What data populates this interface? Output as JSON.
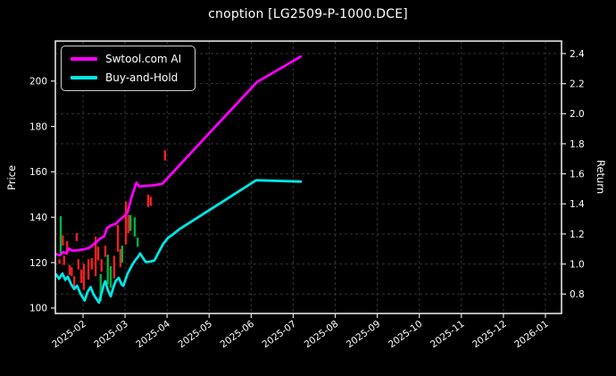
{
  "chart_data": {
    "type": "line + candlestick, dual y-axis time series",
    "title": "cnoption [LG2509-P-1000.DCE]",
    "x_unit": "months after 2025-02 tick (0 = 2025-02, 11 = 2026-01)",
    "x_tick_labels": [
      "2025-02",
      "2025-03",
      "2025-04",
      "2025-05",
      "2025-06",
      "2025-07",
      "2025-08",
      "2025-09",
      "2025-10",
      "2025-11",
      "2025-12",
      "2026-01"
    ],
    "x_domain": [
      -0.658,
      11.383
    ],
    "left_axis": {
      "label": "Price",
      "ticks": [
        100,
        120,
        140,
        160,
        180,
        200
      ],
      "range": [
        97.6,
        217.6
      ]
    },
    "right_axis": {
      "label": "Return",
      "ticks": [
        0.8,
        1.0,
        1.2,
        1.4,
        1.6,
        1.8,
        2.0,
        2.2,
        2.4
      ],
      "range": [
        0.671,
        2.483
      ]
    },
    "grid": {
      "style": "dashed",
      "vertical_at": "month ticks",
      "horizontal_at": "right-axis ticks"
    },
    "legend": {
      "position": "upper left",
      "entries": [
        {
          "label": "Swtool.com AI",
          "color": "#ff00ff"
        },
        {
          "label": "Buy-and-Hold",
          "color": "#00e5e5"
        }
      ]
    },
    "series": [
      {
        "name": "Swtool.com AI",
        "color": "#ff00ff",
        "value_axis": "left (Price)",
        "points": [
          [
            -0.64,
            123.8
          ],
          [
            -0.55,
            123.2
          ],
          [
            -0.47,
            124.6
          ],
          [
            -0.4,
            124.1
          ],
          [
            -0.33,
            126.2
          ],
          [
            -0.26,
            125.3
          ],
          [
            -0.1,
            125.5
          ],
          [
            0.0,
            125.8
          ],
          [
            0.15,
            126.5
          ],
          [
            0.3,
            128.8
          ],
          [
            0.42,
            130.8
          ],
          [
            0.5,
            131.4
          ],
          [
            0.57,
            135.2
          ],
          [
            0.68,
            136.5
          ],
          [
            0.78,
            137.1
          ],
          [
            0.88,
            139.0
          ],
          [
            1.0,
            140.8
          ],
          [
            1.06,
            142.3
          ],
          [
            1.15,
            148.5
          ],
          [
            1.27,
            155.2
          ],
          [
            1.34,
            153.5
          ],
          [
            1.45,
            153.8
          ],
          [
            1.7,
            154.1
          ],
          [
            1.89,
            154.8
          ],
          [
            3.0,
            177.0
          ],
          [
            4.14,
            199.6
          ],
          [
            5.18,
            210.8
          ]
        ]
      },
      {
        "name": "Buy-and-Hold",
        "color": "#00e5e5",
        "value_axis": "left (Price)",
        "points": [
          [
            -0.64,
            114.8
          ],
          [
            -0.57,
            112.9
          ],
          [
            -0.49,
            115.2
          ],
          [
            -0.42,
            112.4
          ],
          [
            -0.36,
            113.8
          ],
          [
            -0.28,
            110.4
          ],
          [
            -0.21,
            108.4
          ],
          [
            -0.14,
            109.8
          ],
          [
            -0.06,
            106.2
          ],
          [
            0.04,
            103.3
          ],
          [
            0.11,
            107.2
          ],
          [
            0.18,
            109.2
          ],
          [
            0.25,
            106.0
          ],
          [
            0.32,
            104.0
          ],
          [
            0.38,
            102.4
          ],
          [
            0.49,
            110.0
          ],
          [
            0.53,
            111.8
          ],
          [
            0.6,
            107.5
          ],
          [
            0.66,
            105.2
          ],
          [
            0.72,
            109.0
          ],
          [
            0.78,
            112.0
          ],
          [
            0.85,
            113.3
          ],
          [
            0.92,
            110.4
          ],
          [
            0.96,
            109.8
          ],
          [
            1.06,
            115.1
          ],
          [
            1.17,
            119.0
          ],
          [
            1.24,
            121.0
          ],
          [
            1.31,
            122.6
          ],
          [
            1.36,
            124.0
          ],
          [
            1.49,
            120.3
          ],
          [
            1.6,
            120.4
          ],
          [
            1.7,
            121.0
          ],
          [
            1.81,
            124.9
          ],
          [
            1.91,
            128.3
          ],
          [
            2.02,
            130.9
          ],
          [
            2.12,
            132.2
          ],
          [
            2.3,
            134.8
          ],
          [
            4.12,
            156.3
          ],
          [
            5.18,
            155.7
          ]
        ]
      }
    ],
    "candles_format": "[x_month, low_price, high_price, direction]",
    "candles": [
      [
        -0.56,
        119.5,
        121.5,
        "down"
      ],
      [
        -0.53,
        124.0,
        140.5,
        "up"
      ],
      [
        -0.48,
        127.5,
        132.0,
        "down"
      ],
      [
        -0.45,
        119.0,
        123.0,
        "down"
      ],
      [
        -0.38,
        123.5,
        129.5,
        "down"
      ],
      [
        -0.32,
        114.5,
        119.0,
        "down"
      ],
      [
        -0.27,
        114.0,
        118.0,
        "down"
      ],
      [
        -0.21,
        109.0,
        114.0,
        "down"
      ],
      [
        -0.15,
        129.5,
        133.0,
        "down"
      ],
      [
        -0.11,
        117.0,
        121.5,
        "down"
      ],
      [
        -0.04,
        111.0,
        117.0,
        "down"
      ],
      [
        0.02,
        108.0,
        119.5,
        "down"
      ],
      [
        0.13,
        112.5,
        121.5,
        "down"
      ],
      [
        0.21,
        117.0,
        122.0,
        "down"
      ],
      [
        0.3,
        114.0,
        131.5,
        "down"
      ],
      [
        0.36,
        121.0,
        127.0,
        "down"
      ],
      [
        0.42,
        103.0,
        115.0,
        "up"
      ],
      [
        0.44,
        116.0,
        121.5,
        "down"
      ],
      [
        0.53,
        122.5,
        127.5,
        "down"
      ],
      [
        0.59,
        110.5,
        123.5,
        "up"
      ],
      [
        0.66,
        109.0,
        118.5,
        "up"
      ],
      [
        0.74,
        113.0,
        123.0,
        "down"
      ],
      [
        0.83,
        124.8,
        136.6,
        "down"
      ],
      [
        0.89,
        118.0,
        126.0,
        "down"
      ],
      [
        0.93,
        120.0,
        127.5,
        "up"
      ],
      [
        1.02,
        128.0,
        147.0,
        "down"
      ],
      [
        1.08,
        133.0,
        141.0,
        "down"
      ],
      [
        1.13,
        134.0,
        141.0,
        "up"
      ],
      [
        1.23,
        131.5,
        140.0,
        "up"
      ],
      [
        1.3,
        127.0,
        131.0,
        "up"
      ],
      [
        1.55,
        144.5,
        150.0,
        "down"
      ],
      [
        1.61,
        145.0,
        149.0,
        "down"
      ],
      [
        1.95,
        165.0,
        169.5,
        "down"
      ]
    ],
    "colors": {
      "background": "#000000",
      "text": "#ffffff",
      "spine": "#e3e3e3",
      "grid": "#343434",
      "up": "#00b140",
      "down": "#ed2121",
      "ai_line": "#ff00ff",
      "buyhold_line": "#00e5e5"
    }
  }
}
